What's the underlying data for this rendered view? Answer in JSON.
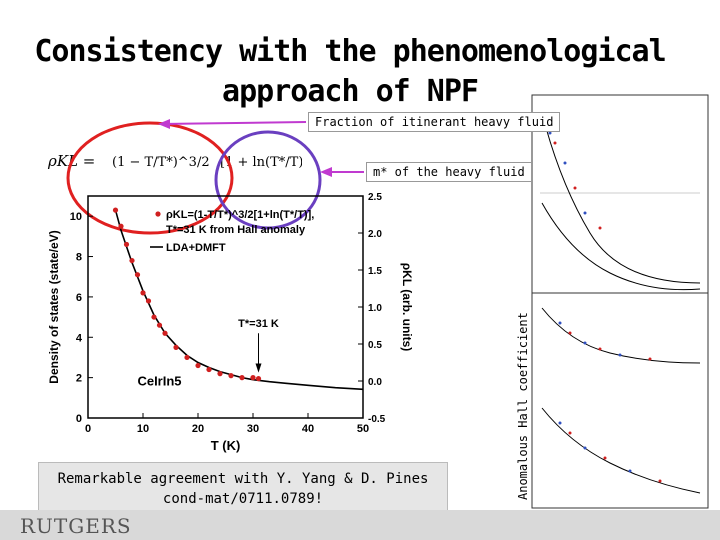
{
  "slide": {
    "title_line1": "Consistency with the phenomenological",
    "title_line2": "approach of NPF",
    "callout_fraction": "Fraction of itinerant heavy fluid",
    "callout_mass": "m* of the heavy fluid",
    "right_axis_label": "Anomalous Hall coefficient",
    "caption_line1": "Remarkable agreement with Y. Yang & D. Pines",
    "caption_line2": "cond-mat/0711.0789!",
    "logo_text": "RUTGERS",
    "formula_lhs": "ρKL =",
    "formula_part1": "(1 − T/T*)^3/2",
    "formula_part2": "[1 + ln(T*/T)]",
    "colors": {
      "red_ellipse": "#e02020",
      "purple_ellipse": "#6a3fc0",
      "arrow": "#c03ad0"
    }
  },
  "chart_data": {
    "type": "scatter",
    "title": "",
    "xlabel": "T (K)",
    "ylabel": "Density of states (state/eV)",
    "y2label": "ρKL (arb. units)",
    "xlim": [
      0,
      50
    ],
    "ylim": [
      0,
      11
    ],
    "y2lim": [
      -0.5,
      2.5
    ],
    "xticks": [
      0,
      10,
      20,
      30,
      40,
      50
    ],
    "yticks": [
      0,
      2,
      4,
      6,
      8,
      10
    ],
    "y2ticks": [
      -0.5,
      0.0,
      0.5,
      1.0,
      1.5,
      2.0,
      2.5
    ],
    "legend": {
      "entries": [
        "ρKL=(1-T/T*)^3/2[1+ln(T*/T)],",
        "T*=31 K from Hall anomaly",
        "LDA+DMFT"
      ],
      "placement": "top-right"
    },
    "annotation_arrow": "T*=31 K",
    "material": "CeIrIn5",
    "series": [
      {
        "name": "LDA+DMFT",
        "kind": "line",
        "x": [
          5,
          6,
          7,
          8,
          9,
          10,
          11,
          12,
          14,
          16,
          18,
          20,
          22,
          24,
          26,
          28,
          30,
          33,
          36,
          40,
          45,
          50
        ],
        "y": [
          10.3,
          9.3,
          8.5,
          7.7,
          7.0,
          6.3,
          5.7,
          5.1,
          4.2,
          3.6,
          3.1,
          2.75,
          2.5,
          2.3,
          2.15,
          2.0,
          1.9,
          1.8,
          1.72,
          1.62,
          1.5,
          1.42
        ]
      },
      {
        "name": "ρKL=(1-T/T*)^3/2[1+ln(T*/T)],",
        "kind": "points",
        "x": [
          5,
          6,
          7,
          8,
          9,
          10,
          11,
          12,
          13,
          14,
          16,
          18,
          20,
          22,
          24,
          26,
          28,
          30,
          31
        ],
        "y": [
          10.3,
          9.5,
          8.6,
          7.8,
          7.1,
          6.2,
          5.8,
          5.0,
          4.6,
          4.2,
          3.5,
          3.0,
          2.6,
          2.4,
          2.2,
          2.1,
          2.0,
          2.0,
          1.95
        ]
      }
    ]
  }
}
